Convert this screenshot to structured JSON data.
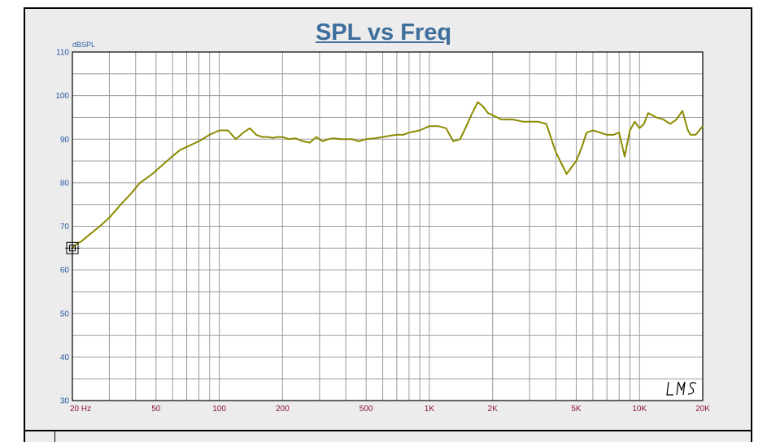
{
  "chart_data": {
    "type": "line",
    "title": "SPL vs Freq",
    "ylabel": "dBSPL",
    "xlabel": "",
    "xscale": "log",
    "xlim": [
      20,
      20000
    ],
    "ylim": [
      30,
      110
    ],
    "grid": true,
    "x_tick_labels": [
      {
        "value": 20,
        "label": "20  Hz"
      },
      {
        "value": 50,
        "label": "50"
      },
      {
        "value": 100,
        "label": "100"
      },
      {
        "value": 200,
        "label": "200"
      },
      {
        "value": 500,
        "label": "500"
      },
      {
        "value": 1000,
        "label": "1K"
      },
      {
        "value": 2000,
        "label": "2K"
      },
      {
        "value": 5000,
        "label": "5K"
      },
      {
        "value": 10000,
        "label": "10K"
      },
      {
        "value": 20000,
        "label": "20K"
      }
    ],
    "y_tick_labels": [
      {
        "value": 110,
        "label": "110"
      },
      {
        "value": 100,
        "label": "100"
      },
      {
        "value": 90,
        "label": "90"
      },
      {
        "value": 80,
        "label": "80"
      },
      {
        "value": 70,
        "label": "70"
      },
      {
        "value": 60,
        "label": "60"
      },
      {
        "value": 50,
        "label": "50"
      },
      {
        "value": 40,
        "label": "40"
      },
      {
        "value": 30,
        "label": "30"
      }
    ],
    "series": [
      {
        "color": "#8c8a00",
        "x": [
          20,
          21,
          22,
          24,
          27,
          30,
          34,
          38,
          42,
          45,
          48,
          52,
          58,
          65,
          72,
          80,
          90,
          100,
          110,
          120,
          130,
          140,
          150,
          160,
          170,
          180,
          190,
          200,
          215,
          230,
          250,
          270,
          290,
          310,
          330,
          350,
          380,
          400,
          430,
          460,
          500,
          550,
          600,
          650,
          700,
          750,
          800,
          900,
          1000,
          1100,
          1200,
          1300,
          1400,
          1500,
          1600,
          1700,
          1800,
          1900,
          2000,
          2100,
          2200,
          2300,
          2500,
          2800,
          3000,
          3300,
          3600,
          4000,
          4500,
          5000,
          5300,
          5600,
          6000,
          6500,
          7000,
          7500,
          8000,
          8500,
          9000,
          9500,
          10000,
          10500,
          11000,
          12000,
          13000,
          14000,
          15000,
          16000,
          17000,
          17500,
          18500,
          20000
        ],
        "y": [
          65,
          66,
          66.5,
          68,
          70,
          72,
          75,
          77.5,
          80,
          81,
          82,
          83.5,
          85.5,
          87.5,
          88.5,
          89.5,
          91,
          92,
          92,
          90,
          91.5,
          92.5,
          91,
          90.5,
          90.5,
          90.3,
          90.5,
          90.5,
          90,
          90.2,
          89.5,
          89.2,
          90.5,
          89.5,
          90,
          90.2,
          90,
          90,
          90,
          89.5,
          90,
          90.2,
          90.5,
          90.8,
          91,
          91,
          91.5,
          92,
          93,
          93,
          92.5,
          89.5,
          90,
          93,
          96,
          98.5,
          97.5,
          96,
          95.5,
          95,
          94.5,
          94.5,
          94.5,
          94,
          94,
          94,
          93.5,
          87,
          82,
          85,
          88,
          91.5,
          92,
          91.5,
          91,
          91,
          91.5,
          86,
          92,
          94,
          92.5,
          93.5,
          96,
          95,
          94.5,
          93.5,
          94.5,
          96.5,
          92,
          91,
          91,
          93
        ]
      }
    ]
  },
  "markers": {
    "cursor_icon": "crosshair-box-icon"
  }
}
